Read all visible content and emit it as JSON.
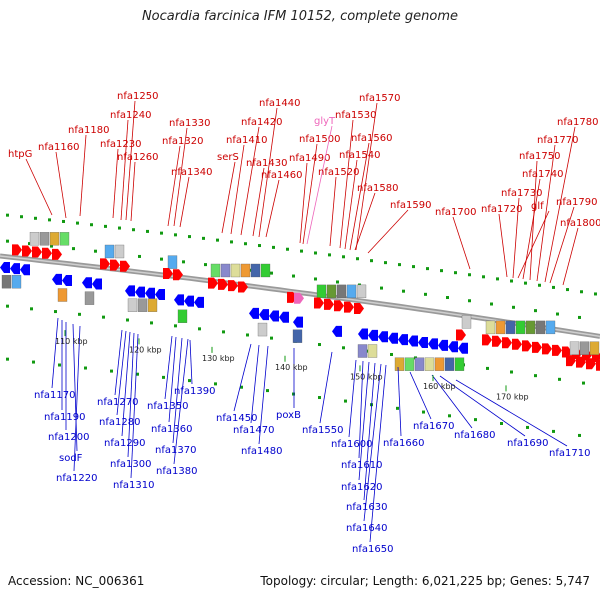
{
  "title": "Nocardia farcinica IFM 10152, complete genome",
  "footer": {
    "accession": "Accession: NC_006361",
    "stats": "Topology: circular; Length: 6,021,225 bp; Genes: 5,747"
  },
  "colors": {
    "forward_gene_label": "#cc0000",
    "forward_gene_label_rna": "#ee66bb",
    "reverse_gene_label": "#0000cc",
    "forward_feature": "#ff0000",
    "reverse_feature": "#0000ff",
    "backbone": "#888888",
    "tick_dot": "#119911"
  },
  "ticks": [
    "110 kbp",
    "120 kbp",
    "130 kbp",
    "140 kbp",
    "150 kbp",
    "160 kbp",
    "170 kbp"
  ],
  "top_labels": [
    {
      "text": "htpG"
    },
    {
      "text": "nfa1160"
    },
    {
      "text": "nfa1180"
    },
    {
      "text": "nfa1230"
    },
    {
      "text": "nfa1240"
    },
    {
      "text": "nfa1250"
    },
    {
      "text": "nfa1260"
    },
    {
      "text": "nfa1320"
    },
    {
      "text": "nfa1330"
    },
    {
      "text": "nfa1340"
    },
    {
      "text": "serS"
    },
    {
      "text": "nfa1410"
    },
    {
      "text": "nfa1420"
    },
    {
      "text": "nfa1430"
    },
    {
      "text": "nfa1440"
    },
    {
      "text": "nfa1460"
    },
    {
      "text": "nfa1490"
    },
    {
      "text": "nfa1500"
    },
    {
      "text": "glyT",
      "rna": true
    },
    {
      "text": "nfa1520"
    },
    {
      "text": "nfa1530"
    },
    {
      "text": "nfa1540"
    },
    {
      "text": "nfa1560"
    },
    {
      "text": "nfa1570"
    },
    {
      "text": "nfa1580"
    },
    {
      "text": "nfa1590"
    },
    {
      "text": "nfa1700"
    },
    {
      "text": "nfa1720"
    },
    {
      "text": "nfa1730"
    },
    {
      "text": "glf"
    },
    {
      "text": "nfa1740"
    },
    {
      "text": "nfa1750"
    },
    {
      "text": "nfa1770"
    },
    {
      "text": "nfa1780"
    },
    {
      "text": "nfa1790"
    },
    {
      "text": "nfa1800"
    }
  ],
  "bottom_labels": [
    {
      "text": "nfa1170"
    },
    {
      "text": "nfa1190"
    },
    {
      "text": "nfa1200"
    },
    {
      "text": "sodF"
    },
    {
      "text": "nfa1220"
    },
    {
      "text": "nfa1270"
    },
    {
      "text": "nfa1280"
    },
    {
      "text": "nfa1290"
    },
    {
      "text": "nfa1300"
    },
    {
      "text": "nfa1310"
    },
    {
      "text": "nfa1350"
    },
    {
      "text": "nfa1360"
    },
    {
      "text": "nfa1370"
    },
    {
      "text": "nfa1380"
    },
    {
      "text": "nfa1390"
    },
    {
      "text": "nfa1450"
    },
    {
      "text": "nfa1470"
    },
    {
      "text": "nfa1480"
    },
    {
      "text": "poxB"
    },
    {
      "text": "nfa1550"
    },
    {
      "text": "nfa1600"
    },
    {
      "text": "nfa1610"
    },
    {
      "text": "nfa1620"
    },
    {
      "text": "nfa1630"
    },
    {
      "text": "nfa1640"
    },
    {
      "text": "nfa1650"
    },
    {
      "text": "nfa1660"
    },
    {
      "text": "nfa1670"
    },
    {
      "text": "nfa1680"
    },
    {
      "text": "nfa1690"
    },
    {
      "text": "nfa1710"
    }
  ]
}
